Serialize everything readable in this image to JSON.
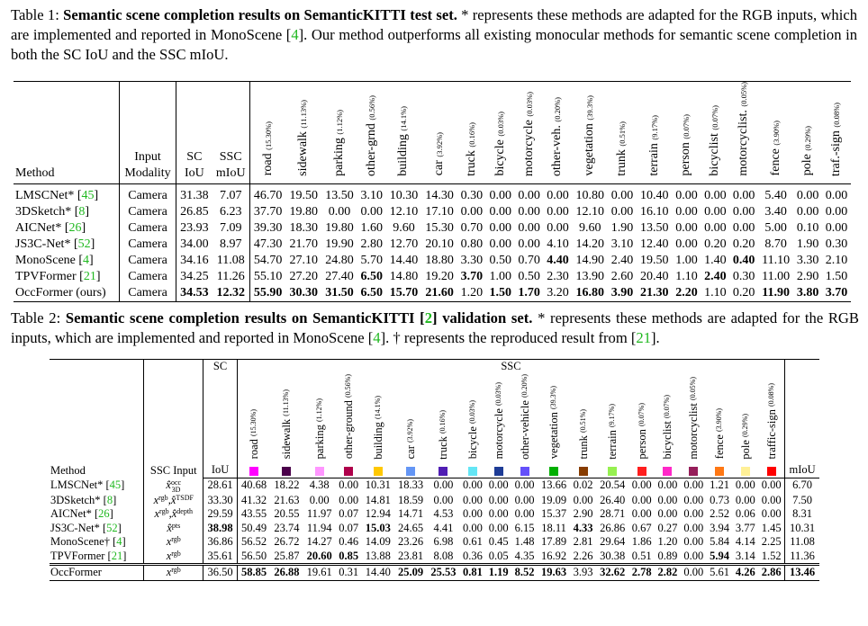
{
  "table1": {
    "caption": [
      {
        "text": "Table 1: "
      },
      {
        "text": "Semantic scene completion results on SemanticKITTI test set.",
        "bold": true
      },
      {
        "text": " * represents these methods are adapted for the RGB inputs, which are implemented and reported in MonoScene ["
      },
      {
        "text": "4",
        "cite": true
      },
      {
        "text": "]. Our method outperforms all existing monocular methods for semantic scene completion in both the SC IoU and the SSC mIoU."
      }
    ],
    "header": {
      "method": "Method",
      "input": [
        "Input",
        "Modality"
      ],
      "sc": [
        "SC",
        "IoU"
      ],
      "ssc": [
        "SSC",
        "mIoU"
      ],
      "classes": [
        {
          "name": "road",
          "freq": "(15.30%)"
        },
        {
          "name": "sidewalk",
          "freq": "(11.13%)"
        },
        {
          "name": "parking",
          "freq": "(1.12%)"
        },
        {
          "name": "other-grnd",
          "freq": "(0.56%)"
        },
        {
          "name": "building",
          "freq": "(14.1%)"
        },
        {
          "name": "car",
          "freq": "(3.92%)"
        },
        {
          "name": "truck",
          "freq": "(0.16%)"
        },
        {
          "name": "bicycle",
          "freq": "(0.03%)"
        },
        {
          "name": "motorcycle",
          "freq": "(0.03%)"
        },
        {
          "name": "other-veh.",
          "freq": "(0.20%)"
        },
        {
          "name": "vegetation",
          "freq": "(39.3%)"
        },
        {
          "name": "trunk",
          "freq": "(0.51%)"
        },
        {
          "name": "terrain",
          "freq": "(9.17%)"
        },
        {
          "name": "person",
          "freq": "(0.07%)"
        },
        {
          "name": "bicyclist",
          "freq": "(0.07%)"
        },
        {
          "name": "motorcyclist.",
          "freq": "(0.05%)"
        },
        {
          "name": "fence",
          "freq": "(3.90%)"
        },
        {
          "name": "pole",
          "freq": "(0.29%)"
        },
        {
          "name": "traf.-sign",
          "freq": "(0.08%)"
        }
      ]
    },
    "rows": [
      {
        "method": [
          {
            "text": "LMSCNet* ["
          },
          {
            "text": "45",
            "cite": true
          },
          {
            "text": "]"
          }
        ],
        "input": "Camera",
        "cells": [
          "31.38",
          "7.07",
          "46.70",
          "19.50",
          "13.50",
          "3.10",
          "10.30",
          "14.30",
          "0.30",
          "0.00",
          "0.00",
          "0.00",
          "10.80",
          "0.00",
          "10.40",
          "0.00",
          "0.00",
          "0.00",
          "5.40",
          "0.00",
          "0.00"
        ],
        "bold": []
      },
      {
        "method": [
          {
            "text": "3DSketch* ["
          },
          {
            "text": "8",
            "cite": true
          },
          {
            "text": "]"
          }
        ],
        "input": "Camera",
        "cells": [
          "26.85",
          "6.23",
          "37.70",
          "19.80",
          "0.00",
          "0.00",
          "12.10",
          "17.10",
          "0.00",
          "0.00",
          "0.00",
          "0.00",
          "12.10",
          "0.00",
          "16.10",
          "0.00",
          "0.00",
          "0.00",
          "3.40",
          "0.00",
          "0.00"
        ],
        "bold": []
      },
      {
        "method": [
          {
            "text": "AICNet* ["
          },
          {
            "text": "26",
            "cite": true
          },
          {
            "text": "]"
          }
        ],
        "input": "Camera",
        "cells": [
          "23.93",
          "7.09",
          "39.30",
          "18.30",
          "19.80",
          "1.60",
          "9.60",
          "15.30",
          "0.70",
          "0.00",
          "0.00",
          "0.00",
          "9.60",
          "1.90",
          "13.50",
          "0.00",
          "0.00",
          "0.00",
          "5.00",
          "0.10",
          "0.00"
        ],
        "bold": []
      },
      {
        "method": [
          {
            "text": "JS3C-Net* ["
          },
          {
            "text": "52",
            "cite": true
          },
          {
            "text": "]"
          }
        ],
        "input": "Camera",
        "cells": [
          "34.00",
          "8.97",
          "47.30",
          "21.70",
          "19.90",
          "2.80",
          "12.70",
          "20.10",
          "0.80",
          "0.00",
          "0.00",
          "4.10",
          "14.20",
          "3.10",
          "12.40",
          "0.00",
          "0.20",
          "0.20",
          "8.70",
          "1.90",
          "0.30"
        ],
        "bold": []
      },
      {
        "method": [
          {
            "text": "MonoScene ["
          },
          {
            "text": "4",
            "cite": true
          },
          {
            "text": "]"
          }
        ],
        "input": "Camera",
        "cells": [
          "34.16",
          "11.08",
          "54.70",
          "27.10",
          "24.80",
          "5.70",
          "14.40",
          "18.80",
          "3.30",
          "0.50",
          "0.70",
          "4.40",
          "14.90",
          "2.40",
          "19.50",
          "1.00",
          "1.40",
          "0.40",
          "11.10",
          "3.30",
          "2.10"
        ],
        "bold": [
          11,
          17
        ]
      },
      {
        "method": [
          {
            "text": "TPVFormer ["
          },
          {
            "text": "21",
            "cite": true
          },
          {
            "text": "]"
          }
        ],
        "input": "Camera",
        "cells": [
          "34.25",
          "11.26",
          "55.10",
          "27.20",
          "27.40",
          "6.50",
          "14.80",
          "19.20",
          "3.70",
          "1.00",
          "0.50",
          "2.30",
          "13.90",
          "2.60",
          "20.40",
          "1.10",
          "2.40",
          "0.30",
          "11.00",
          "2.90",
          "1.50"
        ],
        "bold": [
          5,
          8,
          16
        ]
      },
      {
        "method": [
          {
            "text": "OccFormer (ours)"
          }
        ],
        "input": "Camera",
        "cells": [
          "34.53",
          "12.32",
          "55.90",
          "30.30",
          "31.50",
          "6.50",
          "15.70",
          "21.60",
          "1.20",
          "1.50",
          "1.70",
          "3.20",
          "16.80",
          "3.90",
          "21.30",
          "2.20",
          "1.10",
          "0.20",
          "11.90",
          "3.80",
          "3.70"
        ],
        "bold": [
          0,
          1,
          2,
          3,
          4,
          5,
          6,
          7,
          9,
          10,
          12,
          13,
          14,
          15,
          18,
          19,
          20
        ]
      }
    ]
  },
  "table2": {
    "caption": [
      {
        "text": "Table 2: "
      },
      {
        "text": "Semantic scene completion results on SemanticKITTI [",
        "bold": true
      },
      {
        "text": "2",
        "bold": true,
        "cite": true
      },
      {
        "text": "] validation set.",
        "bold": true
      },
      {
        "text": " * represents these methods are adapted for the RGB inputs, which are implemented and reported in MonoScene ["
      },
      {
        "text": "4",
        "cite": true
      },
      {
        "text": "]. † represents the reproduced result from ["
      },
      {
        "text": "21",
        "cite": true
      },
      {
        "text": "]."
      }
    ],
    "header": {
      "method": "Method",
      "input": "SSC Input",
      "sc_group": "SC",
      "sc": "IoU",
      "ssc_group": "SSC",
      "miou": "mIoU",
      "classes": [
        {
          "name": "road",
          "freq": "(15.30%)",
          "color": "#ff00ff"
        },
        {
          "name": "sidewalk",
          "freq": "(11.13%)",
          "color": "#4b004b"
        },
        {
          "name": "parking",
          "freq": "(1.12%)",
          "color": "#ff96ff"
        },
        {
          "name": "other-ground",
          "freq": "(0.56%)",
          "color": "#af004b"
        },
        {
          "name": "building",
          "freq": "(14.1%)",
          "color": "#ffc800"
        },
        {
          "name": "car",
          "freq": "(3.92%)",
          "color": "#6496f5"
        },
        {
          "name": "truck",
          "freq": "(0.16%)",
          "color": "#501eb4"
        },
        {
          "name": "bicycle",
          "freq": "(0.03%)",
          "color": "#64e6f5"
        },
        {
          "name": "motorcycle",
          "freq": "(0.03%)",
          "color": "#1e3c96"
        },
        {
          "name": "other-vehicle",
          "freq": "(0.20%)",
          "color": "#6450fa"
        },
        {
          "name": "vegetation",
          "freq": "(39.3%)",
          "color": "#00af00"
        },
        {
          "name": "trunk",
          "freq": "(0.51%)",
          "color": "#873c00"
        },
        {
          "name": "terrain",
          "freq": "(9.17%)",
          "color": "#96f050"
        },
        {
          "name": "person",
          "freq": "(0.07%)",
          "color": "#ff1e1e"
        },
        {
          "name": "bicyclist",
          "freq": "(0.07%)",
          "color": "#ff28c8"
        },
        {
          "name": "motorcyclist",
          "freq": "(0.05%)",
          "color": "#961e5a"
        },
        {
          "name": "fence",
          "freq": "(3.90%)",
          "color": "#ff7814"
        },
        {
          "name": "pole",
          "freq": "(0.29%)",
          "color": "#fff096"
        },
        {
          "name": "traffic-sign",
          "freq": "(0.08%)",
          "color": "#ff0000"
        }
      ]
    },
    "rows": [
      {
        "method": [
          {
            "text": "LMSCNet* ["
          },
          {
            "text": "45",
            "cite": true
          },
          {
            "text": "]"
          }
        ],
        "input": [
          {
            "text": "x̂",
            "sup": "occ",
            "sub": "3D"
          }
        ],
        "cells": [
          "28.61",
          "40.68",
          "18.22",
          "4.38",
          "0.00",
          "10.31",
          "18.33",
          "0.00",
          "0.00",
          "0.00",
          "0.00",
          "13.66",
          "0.02",
          "20.54",
          "0.00",
          "0.00",
          "0.00",
          "1.21",
          "0.00",
          "0.00",
          "6.70"
        ],
        "bold": []
      },
      {
        "method": [
          {
            "text": "3DSketch* ["
          },
          {
            "text": "8",
            "cite": true
          },
          {
            "text": "]"
          }
        ],
        "input": [
          {
            "text": "x",
            "sup": "rgb"
          },
          {
            "text": ",x̂",
            "sup": "TSDF"
          }
        ],
        "cells": [
          "33.30",
          "41.32",
          "21.63",
          "0.00",
          "0.00",
          "14.81",
          "18.59",
          "0.00",
          "0.00",
          "0.00",
          "0.00",
          "19.09",
          "0.00",
          "26.40",
          "0.00",
          "0.00",
          "0.00",
          "0.73",
          "0.00",
          "0.00",
          "7.50"
        ],
        "bold": []
      },
      {
        "method": [
          {
            "text": "AICNet* ["
          },
          {
            "text": "26",
            "cite": true
          },
          {
            "text": "]"
          }
        ],
        "input": [
          {
            "text": "x",
            "sup": "rgb"
          },
          {
            "text": ",x̂",
            "sup": "depth"
          }
        ],
        "cells": [
          "29.59",
          "43.55",
          "20.55",
          "11.97",
          "0.07",
          "12.94",
          "14.71",
          "4.53",
          "0.00",
          "0.00",
          "0.00",
          "15.37",
          "2.90",
          "28.71",
          "0.00",
          "0.00",
          "0.00",
          "2.52",
          "0.06",
          "0.00",
          "8.31"
        ],
        "bold": []
      },
      {
        "method": [
          {
            "text": "JS3C-Net* ["
          },
          {
            "text": "52",
            "cite": true
          },
          {
            "text": "]"
          }
        ],
        "input": [
          {
            "text": "x̂",
            "sup": "pts"
          }
        ],
        "cells": [
          "38.98",
          "50.49",
          "23.74",
          "11.94",
          "0.07",
          "15.03",
          "24.65",
          "4.41",
          "0.00",
          "0.00",
          "6.15",
          "18.11",
          "4.33",
          "26.86",
          "0.67",
          "0.27",
          "0.00",
          "3.94",
          "3.77",
          "1.45",
          "10.31"
        ],
        "bold": [
          0,
          5,
          12
        ]
      },
      {
        "method": [
          {
            "text": "MonoScene† ["
          },
          {
            "text": "4",
            "cite": true
          },
          {
            "text": "]"
          }
        ],
        "input": [
          {
            "text": "x",
            "sup": "rgb"
          }
        ],
        "cells": [
          "36.86",
          "56.52",
          "26.72",
          "14.27",
          "0.46",
          "14.09",
          "23.26",
          "6.98",
          "0.61",
          "0.45",
          "1.48",
          "17.89",
          "2.81",
          "29.64",
          "1.86",
          "1.20",
          "0.00",
          "5.84",
          "4.14",
          "2.25",
          "11.08"
        ],
        "bold": []
      },
      {
        "method": [
          {
            "text": "TPVFormer ["
          },
          {
            "text": "21",
            "cite": true
          },
          {
            "text": "]"
          }
        ],
        "input": [
          {
            "text": "x",
            "sup": "rgb"
          }
        ],
        "cells": [
          "35.61",
          "56.50",
          "25.87",
          "20.60",
          "0.85",
          "13.88",
          "23.81",
          "8.08",
          "0.36",
          "0.05",
          "4.35",
          "16.92",
          "2.26",
          "30.38",
          "0.51",
          "0.89",
          "0.00",
          "5.94",
          "3.14",
          "1.52",
          "11.36"
        ],
        "bold": [
          3,
          4,
          17
        ]
      },
      {
        "method": [
          {
            "text": "OccFormer"
          }
        ],
        "input": [
          {
            "text": "x",
            "sup": "rgb"
          }
        ],
        "cells": [
          "36.50",
          "58.85",
          "26.88",
          "19.61",
          "0.31",
          "14.40",
          "25.09",
          "25.53",
          "0.81",
          "1.19",
          "8.52",
          "19.63",
          "3.93",
          "32.62",
          "2.78",
          "2.82",
          "0.00",
          "5.61",
          "4.26",
          "2.86",
          "13.46"
        ],
        "bold": [
          1,
          2,
          6,
          7,
          8,
          9,
          10,
          11,
          13,
          14,
          15,
          18,
          19,
          20
        ]
      }
    ]
  }
}
